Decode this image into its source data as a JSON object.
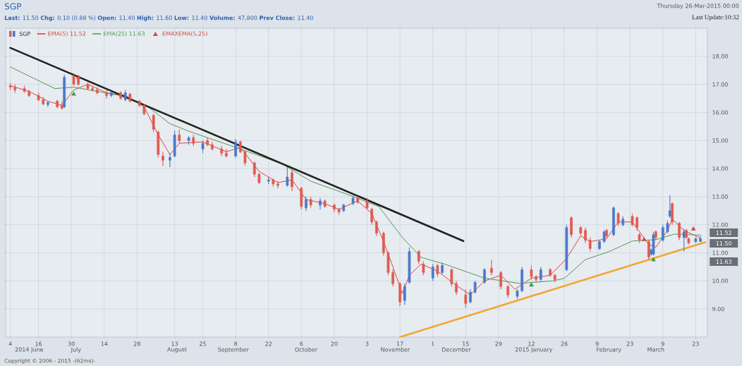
{
  "chart_data": {
    "type": "candlestick",
    "title": "SGP",
    "subtitle": "**Last:** 11.50 **Chg:** 0.10 (0.88 %) **Open:** 11.40 **High:** 11.60 **Low:** 11.40 **Volume:** 47,800 **Prev Close:** 11.40",
    "annotations": [
      "Thursday 26-Mar-2015 00:00",
      "Last Update:10:32",
      "Copyright © 2006 - 2015 -(62ms)-",
      "11.52",
      "11.50",
      "11.63"
    ],
    "xlim": [
      "2014-06-02",
      "2015-03-28"
    ],
    "xticks": [
      {
        "value": "2014-06-04",
        "label": "4"
      },
      {
        "value": "2014-06-16",
        "label": "16"
      },
      {
        "value": "2014-06-30",
        "label": "30"
      },
      {
        "value": "2014-07-14",
        "label": "14"
      },
      {
        "value": "2014-07-28",
        "label": "28"
      },
      {
        "value": "2014-08-13",
        "label": "13"
      },
      {
        "value": "2014-08-25",
        "label": "25"
      },
      {
        "value": "2014-09-08",
        "label": "8"
      },
      {
        "value": "2014-09-22",
        "label": "22"
      },
      {
        "value": "2014-10-06",
        "label": "6"
      },
      {
        "value": "2014-10-20",
        "label": "20"
      },
      {
        "value": "2014-11-03",
        "label": "3"
      },
      {
        "value": "2014-11-17",
        "label": "17"
      },
      {
        "value": "2014-12-01",
        "label": "1"
      },
      {
        "value": "2014-12-15",
        "label": "15"
      },
      {
        "value": "2014-12-29",
        "label": "29"
      },
      {
        "value": "2015-01-12",
        "label": "12"
      },
      {
        "value": "2015-01-26",
        "label": "26"
      },
      {
        "value": "2015-02-09",
        "label": "9"
      },
      {
        "value": "2015-02-23",
        "label": "23"
      },
      {
        "value": "2015-03-09",
        "label": "9"
      },
      {
        "value": "2015-03-23",
        "label": "23"
      }
    ],
    "x2lim": [
      "2014-06-02",
      "2015-03-28"
    ],
    "x2ticks": [
      {
        "value": "2014-06-12",
        "label": "2014 June"
      },
      {
        "value": "2014-07-02",
        "label": "July"
      },
      {
        "value": "2014-08-14",
        "label": "August"
      },
      {
        "value": "2014-09-07",
        "label": "September"
      },
      {
        "value": "2014-10-08",
        "label": "October"
      },
      {
        "value": "2014-11-15",
        "label": "November"
      },
      {
        "value": "2014-12-11",
        "label": "December"
      },
      {
        "value": "2015-01-13",
        "label": "2015 January"
      },
      {
        "value": "2015-02-14",
        "label": "February"
      },
      {
        "value": "2015-03-06",
        "label": "March"
      }
    ],
    "ylim": [
      8,
      19
    ],
    "yticks": [
      {
        "value": 9,
        "label": "9.00"
      },
      {
        "value": 10,
        "label": "10.00"
      },
      {
        "value": 11,
        "label": "11.00"
      },
      {
        "value": 12,
        "label": "12.00"
      },
      {
        "value": 13,
        "label": "13.00"
      },
      {
        "value": 14,
        "label": "14.00"
      },
      {
        "value": 15,
        "label": "15.00"
      },
      {
        "value": 16,
        "label": "16.00"
      },
      {
        "value": 17,
        "label": "17.00"
      },
      {
        "value": 18,
        "label": "18.00"
      }
    ],
    "grid": true,
    "legend": "top left",
    "series": [
      {
        "type": "candlestick",
        "name": "SGP",
        "x": [
          "2014-06-04",
          "2014-06-06",
          "2014-06-10",
          "2014-06-12",
          "2014-06-16",
          "2014-06-18",
          "2014-06-20",
          "2014-06-24",
          "2014-06-26",
          "2014-06-27",
          "2014-07-01",
          "2014-07-03",
          "2014-07-07",
          "2014-07-09",
          "2014-07-11",
          "2014-07-15",
          "2014-07-17",
          "2014-07-21",
          "2014-07-23",
          "2014-07-25",
          "2014-07-29",
          "2014-07-31",
          "2014-08-04",
          "2014-08-06",
          "2014-08-08",
          "2014-08-11",
          "2014-08-13",
          "2014-08-15",
          "2014-08-19",
          "2014-08-21",
          "2014-08-25",
          "2014-08-27",
          "2014-08-29",
          "2014-09-02",
          "2014-09-04",
          "2014-09-08",
          "2014-09-10",
          "2014-09-12",
          "2014-09-16",
          "2014-09-18",
          "2014-09-22",
          "2014-09-24",
          "2014-09-26",
          "2014-09-30",
          "2014-10-02",
          "2014-10-06",
          "2014-10-08",
          "2014-10-10",
          "2014-10-14",
          "2014-10-16",
          "2014-10-20",
          "2014-10-22",
          "2014-10-24",
          "2014-10-28",
          "2014-10-30",
          "2014-11-03",
          "2014-11-05",
          "2014-11-07",
          "2014-11-10",
          "2014-11-12",
          "2014-11-14",
          "2014-11-17",
          "2014-11-19",
          "2014-11-21",
          "2014-11-25",
          "2014-11-27",
          "2014-12-01",
          "2014-12-03",
          "2014-12-05",
          "2014-12-09",
          "2014-12-11",
          "2014-12-15",
          "2014-12-17",
          "2014-12-19",
          "2014-12-23",
          "2014-12-26",
          "2014-12-30",
          "2015-01-02",
          "2015-01-06",
          "2015-01-08",
          "2015-01-12",
          "2015-01-14",
          "2015-01-16",
          "2015-01-20",
          "2015-01-22",
          "2015-01-27",
          "2015-01-29",
          "2015-02-02",
          "2015-02-04",
          "2015-02-06",
          "2015-02-10",
          "2015-02-12",
          "2015-02-13",
          "2015-02-16",
          "2015-02-18",
          "2015-02-20",
          "2015-02-24",
          "2015-02-26",
          "2015-02-27",
          "2015-03-03",
          "2015-03-04",
          "2015-03-05",
          "2015-03-06",
          "2015-03-09",
          "2015-03-11",
          "2015-03-12",
          "2015-03-13",
          "2015-03-16",
          "2015-03-18",
          "2015-03-19",
          "2015-03-20",
          "2015-03-23",
          "2015-03-25"
        ],
        "ohlc": [
          [
            16.95,
            17.05,
            16.8,
            16.9
          ],
          [
            16.9,
            17.0,
            16.7,
            16.8
          ],
          [
            16.85,
            16.95,
            16.7,
            16.75
          ],
          [
            16.75,
            16.8,
            16.55,
            16.6
          ],
          [
            16.6,
            16.7,
            16.4,
            16.45
          ],
          [
            16.45,
            16.55,
            16.25,
            16.3
          ],
          [
            16.28,
            16.4,
            16.2,
            16.35
          ],
          [
            16.4,
            16.45,
            16.15,
            16.2
          ],
          [
            16.25,
            16.4,
            16.1,
            16.15
          ],
          [
            16.2,
            17.35,
            16.15,
            17.25
          ],
          [
            17.3,
            17.4,
            16.95,
            17.0
          ],
          [
            17.2,
            17.3,
            16.95,
            17.0
          ],
          [
            17.0,
            17.1,
            16.8,
            16.85
          ],
          [
            16.85,
            16.95,
            16.75,
            16.8
          ],
          [
            16.8,
            16.9,
            16.65,
            16.7
          ],
          [
            16.7,
            16.8,
            16.5,
            16.6
          ],
          [
            16.6,
            16.75,
            16.55,
            16.7
          ],
          [
            16.7,
            16.75,
            16.45,
            16.5
          ],
          [
            16.45,
            16.8,
            16.4,
            16.7
          ],
          [
            16.65,
            16.7,
            16.35,
            16.4
          ],
          [
            16.4,
            16.45,
            16.2,
            16.25
          ],
          [
            16.25,
            16.3,
            15.9,
            15.95
          ],
          [
            15.9,
            15.95,
            15.3,
            15.4
          ],
          [
            15.3,
            15.35,
            14.4,
            14.5
          ],
          [
            14.45,
            14.6,
            14.1,
            14.3
          ],
          [
            14.3,
            14.55,
            14.05,
            14.4
          ],
          [
            14.45,
            15.35,
            14.4,
            15.2
          ],
          [
            15.2,
            15.4,
            14.9,
            15.0
          ],
          [
            15.0,
            15.15,
            14.85,
            15.1
          ],
          [
            15.1,
            15.2,
            14.8,
            14.9
          ],
          [
            14.7,
            15.0,
            14.55,
            14.9
          ],
          [
            15.0,
            15.1,
            14.8,
            14.85
          ],
          [
            14.85,
            14.95,
            14.65,
            14.7
          ],
          [
            14.7,
            14.8,
            14.45,
            14.55
          ],
          [
            14.55,
            14.7,
            14.4,
            14.45
          ],
          [
            14.45,
            15.05,
            14.4,
            14.95
          ],
          [
            14.95,
            15.0,
            14.55,
            14.6
          ],
          [
            14.6,
            14.65,
            14.1,
            14.2
          ],
          [
            14.2,
            14.25,
            13.7,
            13.8
          ],
          [
            13.8,
            13.85,
            13.45,
            13.5
          ],
          [
            13.55,
            13.7,
            13.45,
            13.6
          ],
          [
            13.6,
            13.65,
            13.35,
            13.45
          ],
          [
            13.45,
            13.55,
            13.3,
            13.4
          ],
          [
            13.4,
            14.05,
            13.35,
            13.7
          ],
          [
            13.85,
            13.95,
            13.2,
            13.35
          ],
          [
            13.3,
            13.35,
            12.55,
            12.65
          ],
          [
            12.6,
            13.0,
            12.5,
            12.9
          ],
          [
            12.9,
            13.0,
            12.6,
            12.7
          ],
          [
            12.7,
            12.95,
            12.55,
            12.85
          ],
          [
            12.85,
            12.9,
            12.6,
            12.65
          ],
          [
            12.7,
            12.75,
            12.45,
            12.55
          ],
          [
            12.55,
            12.6,
            12.35,
            12.45
          ],
          [
            12.5,
            12.75,
            12.45,
            12.7
          ],
          [
            12.75,
            13.05,
            12.7,
            12.95
          ],
          [
            12.95,
            13.0,
            12.75,
            12.8
          ],
          [
            12.85,
            12.95,
            12.55,
            12.6
          ],
          [
            12.55,
            12.6,
            12.0,
            12.1
          ],
          [
            12.1,
            12.15,
            11.6,
            11.7
          ],
          [
            11.7,
            11.75,
            10.9,
            11.0
          ],
          [
            11.0,
            11.05,
            10.2,
            10.3
          ],
          [
            10.3,
            10.4,
            9.8,
            9.9
          ],
          [
            9.9,
            9.95,
            9.1,
            9.25
          ],
          [
            9.3,
            9.9,
            9.15,
            9.8
          ],
          [
            9.95,
            11.2,
            9.9,
            11.05
          ],
          [
            11.05,
            11.1,
            10.6,
            10.7
          ],
          [
            10.6,
            10.7,
            10.2,
            10.3
          ],
          [
            10.1,
            10.6,
            10.0,
            10.5
          ],
          [
            10.55,
            10.6,
            10.15,
            10.25
          ],
          [
            10.3,
            10.65,
            10.25,
            10.55
          ],
          [
            10.4,
            10.45,
            9.8,
            9.9
          ],
          [
            9.9,
            10.0,
            9.5,
            9.6
          ],
          [
            9.5,
            9.7,
            9.05,
            9.2
          ],
          [
            9.25,
            9.7,
            9.2,
            9.6
          ],
          [
            9.6,
            10.0,
            9.55,
            9.95
          ],
          [
            9.95,
            10.45,
            9.9,
            10.4
          ],
          [
            10.45,
            10.75,
            10.2,
            10.3
          ],
          [
            10.3,
            10.35,
            9.7,
            9.8
          ],
          [
            9.8,
            9.85,
            9.4,
            9.5
          ],
          [
            9.45,
            9.7,
            9.35,
            9.65
          ],
          [
            9.65,
            10.5,
            9.6,
            10.4
          ],
          [
            10.4,
            10.55,
            10.05,
            10.15
          ],
          [
            10.15,
            10.2,
            9.95,
            10.05
          ],
          [
            10.05,
            10.5,
            10.0,
            10.4
          ],
          [
            10.4,
            10.45,
            10.15,
            10.2
          ],
          [
            10.2,
            10.25,
            9.95,
            10.05
          ],
          [
            10.4,
            12.0,
            10.35,
            11.9
          ],
          [
            12.25,
            12.3,
            11.55,
            11.65
          ],
          [
            11.9,
            11.95,
            11.6,
            11.7
          ],
          [
            11.8,
            11.9,
            11.35,
            11.45
          ],
          [
            11.45,
            11.55,
            11.05,
            11.15
          ],
          [
            11.15,
            11.45,
            11.1,
            11.4
          ],
          [
            11.4,
            11.8,
            11.35,
            11.75
          ],
          [
            11.8,
            11.85,
            11.55,
            11.6
          ],
          [
            11.65,
            12.65,
            11.6,
            12.6
          ],
          [
            12.4,
            12.45,
            11.95,
            12.05
          ],
          [
            12.0,
            12.3,
            11.95,
            12.2
          ],
          [
            12.3,
            12.4,
            11.95,
            12.0
          ],
          [
            12.25,
            12.3,
            11.8,
            11.9
          ],
          [
            11.65,
            11.7,
            11.35,
            11.45
          ],
          [
            11.4,
            11.45,
            10.75,
            10.85
          ],
          [
            10.95,
            11.15,
            10.9,
            11.1
          ],
          [
            10.95,
            11.75,
            10.9,
            11.65
          ],
          [
            11.75,
            11.8,
            11.45,
            11.55
          ],
          [
            11.45,
            12.0,
            11.4,
            11.9
          ],
          [
            11.75,
            12.15,
            11.7,
            12.05
          ],
          [
            12.3,
            13.05,
            12.25,
            12.5
          ],
          [
            12.75,
            12.8,
            12.0,
            12.1
          ],
          [
            12.05,
            12.1,
            11.45,
            11.55
          ],
          [
            11.55,
            11.85,
            11.05,
            11.75
          ],
          [
            11.8,
            11.85,
            11.5,
            11.55
          ],
          [
            11.5,
            11.55,
            11.3,
            11.35
          ],
          [
            11.4,
            11.55,
            11.35,
            11.5
          ],
          [
            11.4,
            11.6,
            11.4,
            11.5
          ]
        ],
        "colors": [
          "#e05a50",
          "#e05a50",
          "#e05a50",
          "#e05a50",
          "#e05a50",
          "#e05a50",
          "#4a78c8",
          "#e05a50",
          "#e05a50",
          "#4a78c8",
          "#e05a50",
          "#e05a50",
          "#e05a50",
          "#e05a50",
          "#e05a50",
          "#e05a50",
          "#4a78c8",
          "#e05a50",
          "#4a78c8",
          "#e05a50",
          "#e05a50",
          "#e05a50",
          "#e05a50",
          "#e05a50",
          "#e05a50",
          "#4a78c8",
          "#4a78c8",
          "#e05a50",
          "#4a78c8",
          "#e05a50",
          "#4a78c8",
          "#e05a50",
          "#e05a50",
          "#e05a50",
          "#e05a50",
          "#4a78c8",
          "#e05a50",
          "#e05a50",
          "#e05a50",
          "#e05a50",
          "#4a78c8",
          "#e05a50",
          "#e05a50",
          "#4a78c8",
          "#e05a50",
          "#e05a50",
          "#4a78c8",
          "#e05a50",
          "#4a78c8",
          "#e05a50",
          "#e05a50",
          "#e05a50",
          "#4a78c8",
          "#4a78c8",
          "#e05a50",
          "#e05a50",
          "#e05a50",
          "#e05a50",
          "#e05a50",
          "#e05a50",
          "#e05a50",
          "#e05a50",
          "#4a78c8",
          "#4a78c8",
          "#e05a50",
          "#e05a50",
          "#4a78c8",
          "#e05a50",
          "#4a78c8",
          "#e05a50",
          "#e05a50",
          "#e05a50",
          "#4a78c8",
          "#4a78c8",
          "#4a78c8",
          "#e05a50",
          "#e05a50",
          "#e05a50",
          "#4a78c8",
          "#4a78c8",
          "#e05a50",
          "#e05a50",
          "#4a78c8",
          "#e05a50",
          "#e05a50",
          "#4a78c8",
          "#e05a50",
          "#e05a50",
          "#e05a50",
          "#e05a50",
          "#4a78c8",
          "#4a78c8",
          "#e05a50",
          "#4a78c8",
          "#e05a50",
          "#4a78c8",
          "#e05a50",
          "#e05a50",
          "#e05a50",
          "#e05a50",
          "#4a78c8",
          "#4a78c8",
          "#e05a50",
          "#4a78c8",
          "#4a78c8",
          "#4a78c8",
          "#e05a50",
          "#e05a50",
          "#4a78c8",
          "#e05a50",
          "#e05a50",
          "#4a78c8",
          "#4a78c8"
        ]
      },
      {
        "type": "line",
        "name": "EMA(5) 11.52",
        "color": "#d9443c",
        "x": [
          "2014-06-04",
          "2014-06-12",
          "2014-06-20",
          "2014-06-26",
          "2014-07-01",
          "2014-07-07",
          "2014-07-15",
          "2014-07-23",
          "2014-07-31",
          "2014-08-06",
          "2014-08-11",
          "2014-08-15",
          "2014-08-25",
          "2014-09-04",
          "2014-09-10",
          "2014-09-18",
          "2014-09-26",
          "2014-10-02",
          "2014-10-08",
          "2014-10-16",
          "2014-10-22",
          "2014-10-30",
          "2014-11-05",
          "2014-11-10",
          "2014-11-14",
          "2014-11-18",
          "2014-11-21",
          "2014-11-26",
          "2014-12-03",
          "2014-12-10",
          "2014-12-17",
          "2014-12-23",
          "2014-12-30",
          "2015-01-05",
          "2015-01-12",
          "2015-01-20",
          "2015-01-27",
          "2015-02-02",
          "2015-02-06",
          "2015-02-13",
          "2015-02-18",
          "2015-02-24",
          "2015-03-03",
          "2015-03-06",
          "2015-03-11",
          "2015-03-13",
          "2015-03-18",
          "2015-03-25"
        ],
        "values": [
          16.95,
          16.75,
          16.4,
          16.25,
          16.8,
          17.0,
          16.7,
          16.6,
          16.2,
          15.2,
          14.5,
          14.9,
          14.95,
          14.6,
          14.75,
          13.9,
          13.5,
          13.6,
          12.9,
          12.75,
          12.55,
          12.85,
          12.4,
          11.4,
          10.5,
          9.55,
          10.2,
          10.6,
          10.35,
          9.9,
          9.5,
          10.0,
          10.2,
          9.7,
          10.1,
          10.2,
          10.8,
          11.6,
          11.4,
          11.5,
          12.1,
          12.1,
          11.3,
          11.2,
          11.8,
          12.2,
          11.8,
          11.52
        ]
      },
      {
        "type": "line",
        "name": "EMA(25) 11.63",
        "color": "#4e9a4e",
        "x": [
          "2014-06-04",
          "2014-06-23",
          "2014-07-01",
          "2014-07-21",
          "2014-08-01",
          "2014-08-11",
          "2014-08-20",
          "2014-09-10",
          "2014-09-28",
          "2014-10-10",
          "2014-10-25",
          "2014-11-08",
          "2014-11-18",
          "2014-11-26",
          "2014-12-06",
          "2014-12-23",
          "2015-01-07",
          "2015-01-21",
          "2015-01-26",
          "2015-02-04",
          "2015-02-14",
          "2015-02-24",
          "2015-03-06",
          "2015-03-14",
          "2015-03-25"
        ],
        "values": [
          17.62,
          16.85,
          16.9,
          16.6,
          16.24,
          15.6,
          15.3,
          14.7,
          14.16,
          13.55,
          13.1,
          12.65,
          11.55,
          10.84,
          10.6,
          10.1,
          9.91,
          10.0,
          10.09,
          10.76,
          11.04,
          11.42,
          11.47,
          11.67,
          11.63
        ]
      },
      {
        "type": "scatter",
        "name": "EMAXEMA(5,25)",
        "color": "#d9443c",
        "marker": "triangle",
        "x": [
          "2014-07-03",
          "2015-03-01",
          "2015-03-22"
        ],
        "values": [
          17.25,
          11.47,
          11.85
        ]
      },
      {
        "type": "scatter",
        "color": "#3a9a4a",
        "marker": "triangle",
        "x": [
          "2014-07-01",
          "2015-01-12",
          "2015-03-05"
        ],
        "values": [
          16.65,
          9.85,
          10.75
        ]
      },
      {
        "type": "line",
        "color": "#222222",
        "x": [
          "2014-06-04",
          "2014-12-14"
        ],
        "values": [
          18.3,
          11.42
        ]
      },
      {
        "type": "line",
        "color": "#f0a830",
        "x": [
          "2014-11-17",
          "2015-03-27"
        ],
        "values": [
          8.0,
          11.38
        ]
      }
    ]
  }
}
